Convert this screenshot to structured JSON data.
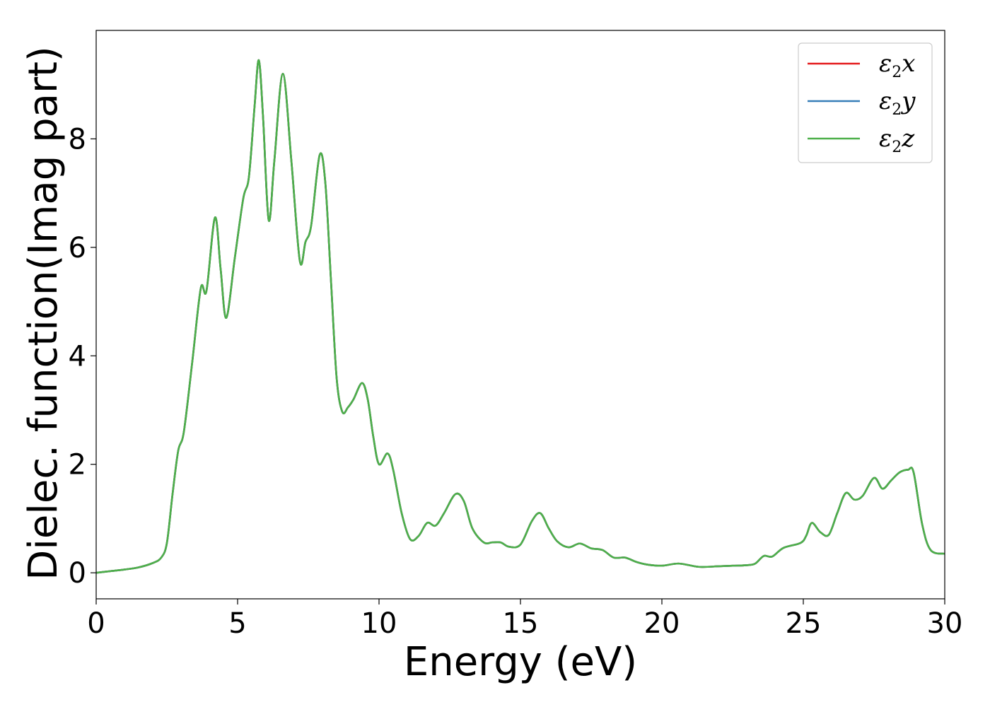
{
  "chart_data": {
    "type": "line",
    "xlabel": "Energy (eV)",
    "ylabel": "Dielec. function(Imag part)",
    "xlim": [
      0,
      30
    ],
    "ylim": [
      -0.48,
      10.0
    ],
    "xticks": [
      0,
      5,
      10,
      15,
      20,
      25,
      30
    ],
    "xtick_labels": [
      "0",
      "5",
      "10",
      "15",
      "20",
      "25",
      "30"
    ],
    "yticks": [
      0,
      2,
      4,
      6,
      8
    ],
    "ytick_labels": [
      "0",
      "2",
      "4",
      "6",
      "8"
    ],
    "grid": false,
    "legend_position": "top-right",
    "x": [
      0,
      0.5,
      1.0,
      1.5,
      2.0,
      2.3,
      2.5,
      2.7,
      2.9,
      3.1,
      3.4,
      3.7,
      3.9,
      4.2,
      4.4,
      4.6,
      4.9,
      5.2,
      5.4,
      5.6,
      5.75,
      5.9,
      6.1,
      6.3,
      6.6,
      6.9,
      7.2,
      7.4,
      7.6,
      7.9,
      8.1,
      8.3,
      8.5,
      8.7,
      8.9,
      9.1,
      9.4,
      9.6,
      9.8,
      10.0,
      10.3,
      10.5,
      10.8,
      11.1,
      11.4,
      11.7,
      12.0,
      12.3,
      12.7,
      13.0,
      13.3,
      13.7,
      14.0,
      14.3,
      14.6,
      15.0,
      15.4,
      15.7,
      16.0,
      16.3,
      16.7,
      17.1,
      17.5,
      17.9,
      18.3,
      18.7,
      19.1,
      19.5,
      20.0,
      20.6,
      21.3,
      22.0,
      22.5,
      23.0,
      23.3,
      23.6,
      23.9,
      24.3,
      24.9,
      25.1,
      25.3,
      25.6,
      25.9,
      26.2,
      26.5,
      26.8,
      27.1,
      27.5,
      27.8,
      28.1,
      28.4,
      28.7,
      28.9,
      29.2,
      29.5,
      30.0
    ],
    "series": [
      {
        "name": "ε2x",
        "color": "#e41a1c",
        "values": [
          0.0,
          0.03,
          0.06,
          0.1,
          0.18,
          0.28,
          0.55,
          1.45,
          2.25,
          2.6,
          3.9,
          5.25,
          5.2,
          6.55,
          5.6,
          4.7,
          5.8,
          6.9,
          7.3,
          8.6,
          9.45,
          8.4,
          6.5,
          7.6,
          9.2,
          7.6,
          5.75,
          6.1,
          6.4,
          7.7,
          7.2,
          5.4,
          3.6,
          2.97,
          3.05,
          3.2,
          3.5,
          3.2,
          2.5,
          2.0,
          2.2,
          1.9,
          1.1,
          0.62,
          0.68,
          0.92,
          0.87,
          1.1,
          1.45,
          1.32,
          0.82,
          0.56,
          0.56,
          0.56,
          0.48,
          0.52,
          0.95,
          1.1,
          0.82,
          0.58,
          0.47,
          0.54,
          0.45,
          0.42,
          0.28,
          0.28,
          0.2,
          0.15,
          0.13,
          0.17,
          0.11,
          0.12,
          0.13,
          0.14,
          0.17,
          0.31,
          0.3,
          0.46,
          0.55,
          0.68,
          0.92,
          0.75,
          0.7,
          1.1,
          1.47,
          1.35,
          1.42,
          1.75,
          1.55,
          1.7,
          1.85,
          1.9,
          1.85,
          0.9,
          0.42,
          0.35
        ]
      },
      {
        "name": "ε2y",
        "color": "#377eb8",
        "values": [
          0.0,
          0.03,
          0.06,
          0.1,
          0.18,
          0.28,
          0.55,
          1.45,
          2.25,
          2.6,
          3.9,
          5.25,
          5.2,
          6.55,
          5.6,
          4.7,
          5.8,
          6.9,
          7.3,
          8.6,
          9.45,
          8.4,
          6.5,
          7.6,
          9.2,
          7.6,
          5.75,
          6.1,
          6.4,
          7.7,
          7.2,
          5.4,
          3.6,
          2.97,
          3.05,
          3.2,
          3.5,
          3.2,
          2.5,
          2.0,
          2.2,
          1.9,
          1.1,
          0.62,
          0.68,
          0.92,
          0.87,
          1.1,
          1.45,
          1.32,
          0.82,
          0.56,
          0.56,
          0.56,
          0.48,
          0.52,
          0.95,
          1.1,
          0.82,
          0.58,
          0.47,
          0.54,
          0.45,
          0.42,
          0.28,
          0.28,
          0.2,
          0.15,
          0.13,
          0.17,
          0.11,
          0.12,
          0.13,
          0.14,
          0.17,
          0.31,
          0.3,
          0.46,
          0.55,
          0.68,
          0.92,
          0.75,
          0.7,
          1.1,
          1.47,
          1.35,
          1.42,
          1.75,
          1.55,
          1.7,
          1.85,
          1.9,
          1.85,
          0.9,
          0.42,
          0.35
        ]
      },
      {
        "name": "ε2z",
        "color": "#4daf4a",
        "values": [
          0.0,
          0.03,
          0.06,
          0.1,
          0.18,
          0.28,
          0.55,
          1.45,
          2.25,
          2.6,
          3.9,
          5.25,
          5.2,
          6.55,
          5.6,
          4.7,
          5.8,
          6.9,
          7.3,
          8.6,
          9.45,
          8.4,
          6.5,
          7.6,
          9.2,
          7.6,
          5.75,
          6.1,
          6.4,
          7.7,
          7.2,
          5.4,
          3.6,
          2.97,
          3.05,
          3.2,
          3.5,
          3.2,
          2.5,
          2.0,
          2.2,
          1.9,
          1.1,
          0.62,
          0.68,
          0.92,
          0.87,
          1.1,
          1.45,
          1.32,
          0.82,
          0.56,
          0.56,
          0.56,
          0.48,
          0.52,
          0.95,
          1.1,
          0.82,
          0.58,
          0.47,
          0.54,
          0.45,
          0.42,
          0.28,
          0.28,
          0.2,
          0.15,
          0.13,
          0.17,
          0.11,
          0.12,
          0.13,
          0.14,
          0.17,
          0.31,
          0.3,
          0.46,
          0.55,
          0.68,
          0.92,
          0.75,
          0.7,
          1.1,
          1.47,
          1.35,
          1.42,
          1.75,
          1.55,
          1.7,
          1.85,
          1.9,
          1.85,
          0.9,
          0.42,
          0.35
        ]
      }
    ]
  }
}
